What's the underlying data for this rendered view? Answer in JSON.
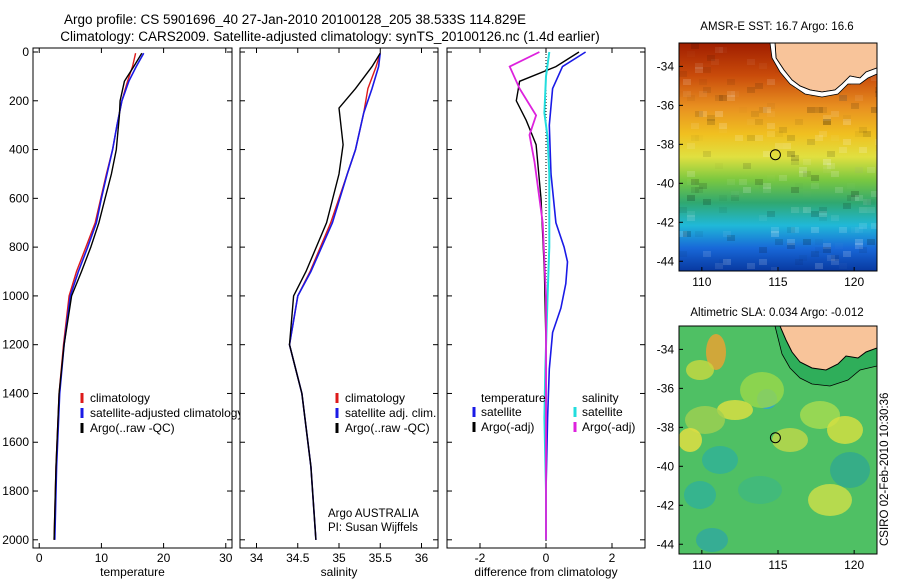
{
  "title_line1": "Argo profile: CS 5901696_40 27-Jan-2010 20100128_205 38.533S 114.829E",
  "title_line2": "Climatology: CARS2009. Satellite-adjusted climatology: synTS_20100126.nc (1.4d earlier)",
  "side_label": "CSIRO 02-Feb-2010 10:30:36",
  "colors": {
    "climatology": "#dd1a1a",
    "satellite": "#1a1ae6",
    "argo": "#000000",
    "sat_sal": "#22dddd",
    "argo_sal": "#dd22dd",
    "land": "#f8c49a"
  },
  "chart_data": [
    {
      "type": "line",
      "xlabel": "temperature",
      "ylabel": "",
      "xlim": [
        -1,
        31
      ],
      "ylim": [
        2050,
        0
      ],
      "xticks": [
        "0",
        "10",
        "20",
        "30"
      ],
      "yticks": [
        "0",
        "200",
        "400",
        "600",
        "800",
        "1000",
        "1200",
        "1400",
        "1600",
        "1800",
        "2000"
      ],
      "legend": [
        "climatology",
        "satellite-adjusted climatology",
        "Argo(..raw -QC)"
      ],
      "series": [
        {
          "name": "climatology",
          "x": [
            15.5,
            15.0,
            14.2,
            13.3,
            12.5,
            11.8,
            10.8,
            9.9,
            9.0,
            7.5,
            6.0,
            4.8,
            3.9,
            3.2,
            2.7,
            2.4
          ],
          "y": [
            5,
            60,
            120,
            200,
            300,
            400,
            500,
            600,
            700,
            800,
            900,
            1000,
            1200,
            1400,
            1700,
            2000
          ]
        },
        {
          "name": "satellite-adjusted climatology",
          "x": [
            16.8,
            15.6,
            14.4,
            13.3,
            12.5,
            11.8,
            10.9,
            10.0,
            9.2,
            7.8,
            6.3,
            5.0,
            4.0,
            3.3,
            2.8,
            2.5
          ],
          "y": [
            5,
            60,
            120,
            200,
            300,
            400,
            500,
            600,
            700,
            800,
            900,
            1000,
            1200,
            1400,
            1700,
            2000
          ]
        },
        {
          "name": "Argo(..raw -QC)",
          "x": [
            16.5,
            15.2,
            13.7,
            13.0,
            12.9,
            12.4,
            11.6,
            10.6,
            9.6,
            8.3,
            6.8,
            5.2,
            4.0,
            3.2,
            2.7,
            2.4
          ],
          "y": [
            5,
            60,
            120,
            200,
            260,
            400,
            500,
            600,
            700,
            800,
            900,
            1000,
            1200,
            1400,
            1700,
            2000
          ]
        }
      ]
    },
    {
      "type": "line",
      "xlabel": "salinity",
      "xlim": [
        33.8,
        36.2
      ],
      "ylim": [
        2050,
        0
      ],
      "xticks": [
        "34",
        "34.5",
        "35",
        "35.5",
        "36"
      ],
      "legend": [
        "climatology",
        "satellite adj. clim.",
        "Argo(..raw -QC)"
      ],
      "annotation": [
        "Argo AUSTRALIA",
        "PI: Susan Wijffels"
      ],
      "series": [
        {
          "name": "climatology",
          "x": [
            35.5,
            35.45,
            35.35,
            35.3,
            35.2,
            35.1,
            34.9,
            34.65,
            34.5,
            34.4,
            34.55,
            34.66,
            34.72
          ],
          "y": [
            5,
            60,
            150,
            250,
            400,
            500,
            700,
            900,
            1000,
            1200,
            1400,
            1700,
            2000
          ]
        },
        {
          "name": "satellite adj. clim.",
          "x": [
            35.5,
            35.48,
            35.4,
            35.3,
            35.2,
            35.1,
            34.92,
            34.66,
            34.5,
            34.4,
            34.55,
            34.66,
            34.72
          ],
          "y": [
            5,
            60,
            150,
            250,
            400,
            500,
            700,
            900,
            1000,
            1200,
            1400,
            1700,
            2000
          ]
        },
        {
          "name": "Argo(..raw -QC)",
          "x": [
            35.5,
            35.4,
            35.2,
            35.0,
            35.05,
            35.0,
            34.85,
            34.6,
            34.45,
            34.4,
            34.55,
            34.66,
            34.72
          ],
          "y": [
            5,
            60,
            150,
            230,
            380,
            500,
            700,
            900,
            1000,
            1200,
            1400,
            1700,
            2000
          ]
        }
      ]
    },
    {
      "type": "line",
      "xlabel": "difference from climatology",
      "xlim": [
        -3,
        3
      ],
      "ylim": [
        2050,
        0
      ],
      "xticks": [
        "-2",
        "0",
        "2"
      ],
      "legend_temperature": [
        "temperature",
        "satellite",
        "Argo(-adj)"
      ],
      "legend_salinity": [
        "salinity",
        "satellite",
        "Argo(-adj)"
      ],
      "series": [
        {
          "name": "temperature satellite",
          "x": [
            1.2,
            0.5,
            0.2,
            0.1,
            0.15,
            0.3,
            0.55,
            0.65,
            0.6,
            0.45,
            0.2,
            0.1,
            0.05,
            0.0,
            0.0
          ],
          "y": [
            0,
            60,
            150,
            300,
            500,
            700,
            800,
            860,
            950,
            1050,
            1150,
            1300,
            1500,
            1800,
            2000
          ]
        },
        {
          "name": "temperature Argo(-adj)",
          "x": [
            1.0,
            0.3,
            -0.8,
            -0.9,
            -0.6,
            -0.3,
            -0.15,
            -0.05,
            0.0,
            0.0,
            0.0
          ],
          "y": [
            0,
            60,
            120,
            200,
            280,
            380,
            600,
            900,
            1200,
            1500,
            2000
          ]
        },
        {
          "name": "salinity satellite",
          "x": [
            0.1,
            0.0,
            -0.05,
            0.05,
            0.1,
            0.1,
            0.05,
            -0.02,
            -0.05,
            0.0,
            0.0
          ],
          "y": [
            0,
            100,
            250,
            350,
            500,
            800,
            1000,
            1300,
            1500,
            1800,
            2000
          ]
        },
        {
          "name": "salinity Argo(-adj)",
          "x": [
            -0.2,
            -1.1,
            -0.8,
            -0.3,
            -0.5,
            -0.35,
            -0.1,
            0.0,
            0.0,
            0.0
          ],
          "y": [
            0,
            60,
            150,
            260,
            340,
            450,
            700,
            1000,
            1500,
            2000
          ]
        }
      ]
    },
    {
      "type": "heatmap",
      "title": "AMSR-E SST: 16.7  Argo: 16.6",
      "xlim": [
        108.5,
        121.5
      ],
      "ylim": [
        -44.5,
        -32.8
      ],
      "xticks": [
        "110",
        "115",
        "120"
      ],
      "yticks": [
        "-34",
        "-36",
        "-38",
        "-40",
        "-42",
        "-44"
      ],
      "marker": {
        "lon": 114.829,
        "lat": -38.533
      }
    },
    {
      "type": "heatmap",
      "title": "Altimetric SLA: 0.034  Argo: -0.012",
      "xlim": [
        108.5,
        121.5
      ],
      "ylim": [
        -44.5,
        -32.8
      ],
      "xticks": [
        "110",
        "115",
        "120"
      ],
      "yticks": [
        "-34",
        "-36",
        "-38",
        "-40",
        "-42",
        "-44"
      ],
      "marker": {
        "lon": 114.829,
        "lat": -38.533
      }
    }
  ]
}
